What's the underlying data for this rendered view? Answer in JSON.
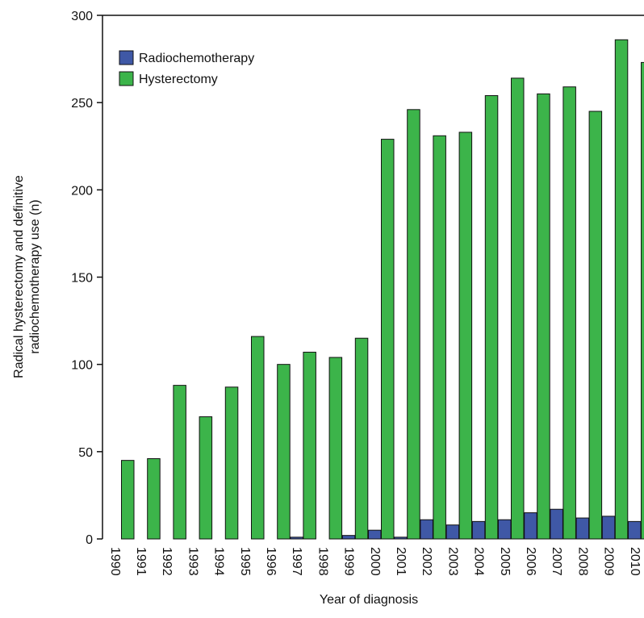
{
  "chart_data": {
    "type": "bar",
    "y_label": [
      "Radical hysterectomy and definitive",
      "radiochemotherapy use (n)"
    ],
    "x_label": "Year of diagnosis",
    "categories": [
      "1990",
      "1991",
      "1992",
      "1993",
      "1994",
      "1995",
      "1996",
      "1997",
      "1998",
      "1999",
      "2000",
      "2001",
      "2002",
      "2003",
      "2004",
      "2005",
      "2006",
      "2007",
      "2008",
      "2009",
      "2010"
    ],
    "series": [
      {
        "name": "Radiochemotherapy",
        "color": "#3f58a6",
        "values": [
          0,
          0,
          0,
          0,
          0,
          0,
          0,
          1,
          0,
          2,
          5,
          1,
          11,
          8,
          10,
          11,
          15,
          17,
          12,
          13,
          10
        ]
      },
      {
        "name": "Hysterectomy",
        "color": "#3cb44a",
        "values": [
          45,
          46,
          88,
          70,
          87,
          116,
          100,
          107,
          104,
          115,
          229,
          246,
          231,
          233,
          254,
          264,
          255,
          259,
          245,
          286,
          273
        ]
      }
    ],
    "ylim": [
      0,
      300
    ],
    "yticks": [
      0,
      50,
      100,
      150,
      200,
      250,
      300
    ],
    "legend": "top-left"
  }
}
